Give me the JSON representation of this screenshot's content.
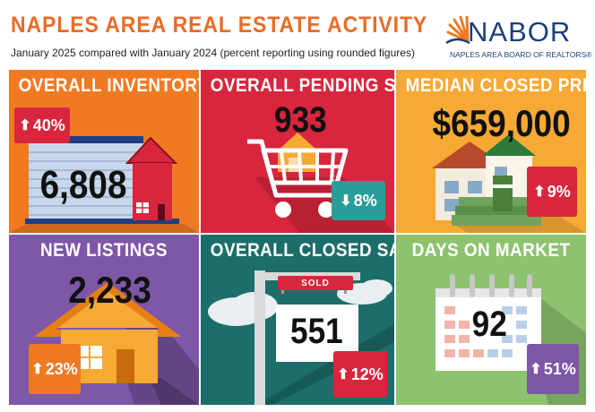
{
  "header": {
    "title": "NAPLES AREA REAL ESTATE ACTIVITY",
    "subtitle": "January 2025 compared with January 2024 (percent reporting using rounded figures)"
  },
  "logo": {
    "name": "NABOR",
    "tagline": "NAPLES AREA BOARD OF REALTORS®"
  },
  "tiles": [
    {
      "title": "OVERALL INVENTORY",
      "value": "6,808",
      "change": "40%",
      "direction": "up",
      "color": "#f07a22",
      "badge_color": "#d7263d",
      "icon": "house-icon"
    },
    {
      "title": "OVERALL PENDING SALES",
      "value": "933",
      "change": "8%",
      "direction": "down",
      "color": "#d7263d",
      "badge_color": "#2a9d9a",
      "icon": "shopping-cart-icon"
    },
    {
      "title": "MEDIAN CLOSED PRICE",
      "value": "$659,000",
      "change": "9%",
      "direction": "up",
      "color": "#f6a934",
      "badge_color": "#d7263d",
      "icon": "house-with-money-icon"
    },
    {
      "title": "NEW LISTINGS",
      "value": "2,233",
      "change": "23%",
      "direction": "up",
      "color": "#7e57a8",
      "badge_color": "#f07a22",
      "icon": "house-icon"
    },
    {
      "title": "OVERALL CLOSED SALES",
      "value": "551",
      "change": "12%",
      "direction": "up",
      "color": "#1c6e6a",
      "badge_color": "#d7263d",
      "icon": "sold-sign-icon",
      "sign_text": "SOLD"
    },
    {
      "title": "DAYS ON MARKET",
      "value": "92",
      "change": "51%",
      "direction": "up",
      "color": "#8dc26f",
      "badge_color": "#7e57a8",
      "icon": "calendar-icon"
    }
  ]
}
